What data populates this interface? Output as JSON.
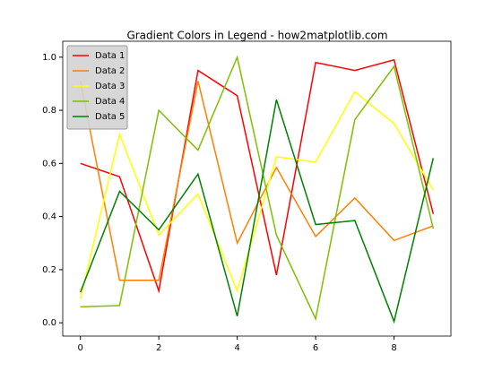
{
  "chart_data": {
    "type": "line",
    "title": "Gradient Colors in Legend - how2matplotlib.com",
    "x": [
      0,
      1,
      2,
      3,
      4,
      5,
      6,
      7,
      8,
      9
    ],
    "series": [
      {
        "name": "Data 1",
        "color": "#ff0000",
        "values": [
          0.6,
          0.55,
          0.12,
          0.95,
          0.855,
          0.18,
          0.98,
          0.95,
          0.99,
          0.41
        ]
      },
      {
        "name": "Data 2",
        "color": "#ff7f00",
        "values": [
          0.91,
          0.16,
          0.16,
          0.91,
          0.3,
          0.585,
          0.325,
          0.47,
          0.31,
          0.365
        ]
      },
      {
        "name": "Data 3",
        "color": "#ffff00",
        "values": [
          0.09,
          0.71,
          0.33,
          0.485,
          0.12,
          0.625,
          0.605,
          0.87,
          0.75,
          0.5
        ]
      },
      {
        "name": "Data 4",
        "color": "#7fbf00",
        "values": [
          0.06,
          0.065,
          0.8,
          0.65,
          1.0,
          0.33,
          0.015,
          0.765,
          0.965,
          0.355
        ]
      },
      {
        "name": "Data 5",
        "color": "#008000",
        "values": [
          0.115,
          0.495,
          0.35,
          0.56,
          0.025,
          0.84,
          0.37,
          0.385,
          0.005,
          0.62
        ]
      }
    ],
    "xlim": [
      -0.45,
      9.45
    ],
    "ylim": [
      -0.05,
      1.06
    ],
    "xticks": [
      0,
      2,
      4,
      6,
      8
    ],
    "yticks": [
      {
        "value": 0,
        "label": "0.0"
      },
      {
        "value": 0.2,
        "label": "0.2"
      },
      {
        "value": 0.4,
        "label": "0.4"
      },
      {
        "value": 0.6,
        "label": "0.6"
      },
      {
        "value": 0.8,
        "label": "0.8"
      },
      {
        "value": 1,
        "label": "1.0"
      }
    ],
    "legend": "upper left"
  }
}
